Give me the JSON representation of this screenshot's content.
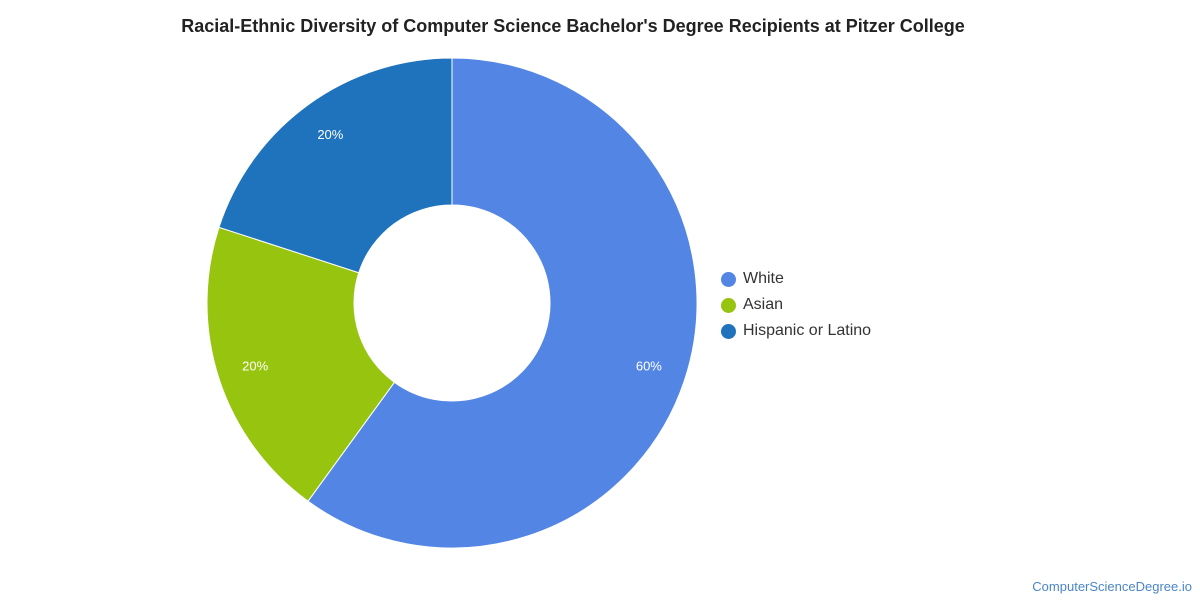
{
  "chart_data": {
    "type": "pie",
    "title": "Racial-Ethnic Diversity of Computer Science Bachelor's Degree Recipients at Pitzer College",
    "donut": true,
    "legend_position": "right",
    "slices": [
      {
        "label": "White",
        "value": 60,
        "display": "60%",
        "color": "#5386e4"
      },
      {
        "label": "Asian",
        "value": 20,
        "display": "20%",
        "color": "#97c40e"
      },
      {
        "label": "Hispanic or Latino",
        "value": 20,
        "display": "20%",
        "color": "#1f73bc"
      }
    ]
  },
  "footer": {
    "source": "ComputerScienceDegree.io"
  }
}
